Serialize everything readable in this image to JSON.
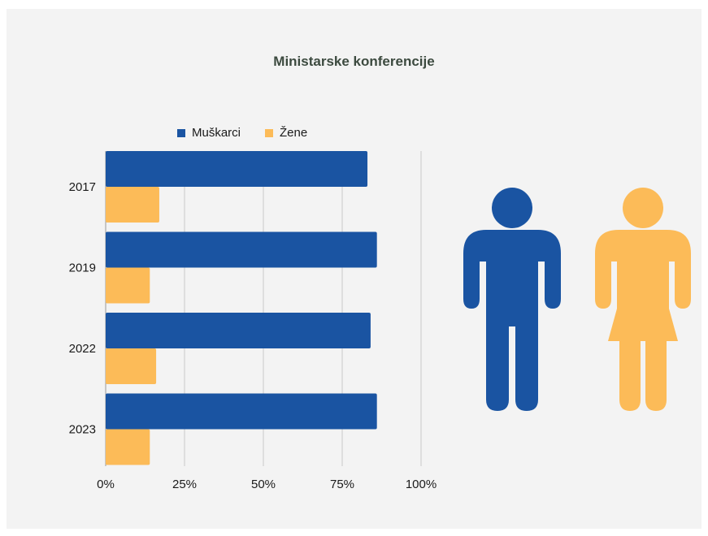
{
  "chart_data": {
    "type": "bar",
    "orientation": "horizontal",
    "title": "Ministarske konferencije",
    "categories": [
      "2017",
      "2019",
      "2022",
      "2023"
    ],
    "series": [
      {
        "name": "Muškarci",
        "color": "#1a54a2",
        "values": [
          83,
          86,
          84,
          86
        ]
      },
      {
        "name": "Žene",
        "color": "#fcbb58",
        "values": [
          17,
          14,
          16,
          14
        ]
      }
    ],
    "x_ticks": [
      "0%",
      "25%",
      "50%",
      "75%",
      "100%"
    ],
    "xlim": [
      0,
      100
    ],
    "unit": "%",
    "grid": true,
    "legend_position": "top"
  },
  "icons": [
    {
      "name": "male-figure-icon",
      "color": "#1a54a2"
    },
    {
      "name": "female-figure-icon",
      "color": "#fcbb58"
    }
  ]
}
